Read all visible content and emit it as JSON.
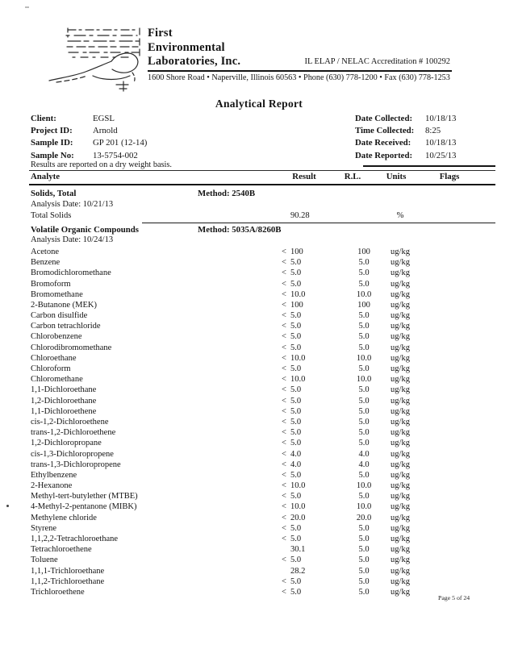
{
  "letterhead": {
    "company_lines": [
      "First",
      "Environmental",
      "Laboratories, Inc."
    ],
    "accreditation": "IL ELAP / NELAC Accreditation # 100292",
    "address": "1600 Shore Road • Naperville, Illinois 60563 • Phone (630) 778-1200 • Fax (630) 778-1253"
  },
  "title": "Analytical Report",
  "info": {
    "left": [
      {
        "label": "Client:",
        "value": "EGSL"
      },
      {
        "label": "Project ID:",
        "value": "Arnold"
      },
      {
        "label": "Sample ID:",
        "value": "GP 201  (12-14)"
      },
      {
        "label": "Sample No:",
        "value": "13-5754-002"
      }
    ],
    "right": [
      {
        "label": "Date Collected:",
        "value": "10/18/13"
      },
      {
        "label": "Time Collected:",
        "value": "8:25"
      },
      {
        "label": "Date Received:",
        "value": "10/18/13"
      },
      {
        "label": "Date Reported:",
        "value": "10/25/13"
      }
    ],
    "note": "Results are reported on a dry weight basis."
  },
  "table": {
    "columns": [
      "Analyte",
      "Result",
      "R.L.",
      "Units",
      "Flags"
    ],
    "sections": [
      {
        "name": "Solids, Total",
        "method": "Method:  2540B",
        "analysis_date": "Analysis Date:   10/21/13",
        "divider_after": true,
        "rows": [
          {
            "analyte": "Total Solids",
            "qualifier": "",
            "result": "90.28",
            "rl": "",
            "units": "%",
            "flags": ""
          }
        ]
      },
      {
        "name": "Volatile Organic Compounds",
        "method": "Method:  5035A/8260B",
        "analysis_date": "Analysis Date:   10/24/13",
        "divider_after": false,
        "rows": [
          {
            "analyte": "Acetone",
            "qualifier": "<",
            "result": "100",
            "rl": "100",
            "units": "ug/kg",
            "flags": ""
          },
          {
            "analyte": "Benzene",
            "qualifier": "<",
            "result": "5.0",
            "rl": "5.0",
            "units": "ug/kg",
            "flags": ""
          },
          {
            "analyte": "Bromodichloromethane",
            "qualifier": "<",
            "result": "5.0",
            "rl": "5.0",
            "units": "ug/kg",
            "flags": ""
          },
          {
            "analyte": "Bromoform",
            "qualifier": "<",
            "result": "5.0",
            "rl": "5.0",
            "units": "ug/kg",
            "flags": ""
          },
          {
            "analyte": "Bromomethane",
            "qualifier": "<",
            "result": "10.0",
            "rl": "10.0",
            "units": "ug/kg",
            "flags": ""
          },
          {
            "analyte": "2-Butanone (MEK)",
            "qualifier": "<",
            "result": "100",
            "rl": "100",
            "units": "ug/kg",
            "flags": ""
          },
          {
            "analyte": "Carbon disulfide",
            "qualifier": "<",
            "result": "5.0",
            "rl": "5.0",
            "units": "ug/kg",
            "flags": ""
          },
          {
            "analyte": "Carbon tetrachloride",
            "qualifier": "<",
            "result": "5.0",
            "rl": "5.0",
            "units": "ug/kg",
            "flags": ""
          },
          {
            "analyte": "Chlorobenzene",
            "qualifier": "<",
            "result": "5.0",
            "rl": "5.0",
            "units": "ug/kg",
            "flags": ""
          },
          {
            "analyte": "Chlorodibromomethane",
            "qualifier": "<",
            "result": "5.0",
            "rl": "5.0",
            "units": "ug/kg",
            "flags": ""
          },
          {
            "analyte": "Chloroethane",
            "qualifier": "<",
            "result": "10.0",
            "rl": "10.0",
            "units": "ug/kg",
            "flags": ""
          },
          {
            "analyte": "Chloroform",
            "qualifier": "<",
            "result": "5.0",
            "rl": "5.0",
            "units": "ug/kg",
            "flags": ""
          },
          {
            "analyte": "Chloromethane",
            "qualifier": "<",
            "result": "10.0",
            "rl": "10.0",
            "units": "ug/kg",
            "flags": ""
          },
          {
            "analyte": "1,1-Dichloroethane",
            "qualifier": "<",
            "result": "5.0",
            "rl": "5.0",
            "units": "ug/kg",
            "flags": ""
          },
          {
            "analyte": "1,2-Dichloroethane",
            "qualifier": "<",
            "result": "5.0",
            "rl": "5.0",
            "units": "ug/kg",
            "flags": ""
          },
          {
            "analyte": "1,1-Dichloroethene",
            "qualifier": "<",
            "result": "5.0",
            "rl": "5.0",
            "units": "ug/kg",
            "flags": ""
          },
          {
            "analyte": "cis-1,2-Dichloroethene",
            "qualifier": "<",
            "result": "5.0",
            "rl": "5.0",
            "units": "ug/kg",
            "flags": ""
          },
          {
            "analyte": "trans-1,2-Dichloroethene",
            "qualifier": "<",
            "result": "5.0",
            "rl": "5.0",
            "units": "ug/kg",
            "flags": ""
          },
          {
            "analyte": "1,2-Dichloropropane",
            "qualifier": "<",
            "result": "5.0",
            "rl": "5.0",
            "units": "ug/kg",
            "flags": ""
          },
          {
            "analyte": "cis-1,3-Dichloropropene",
            "qualifier": "<",
            "result": "4.0",
            "rl": "4.0",
            "units": "ug/kg",
            "flags": ""
          },
          {
            "analyte": "trans-1,3-Dichloropropene",
            "qualifier": "<",
            "result": "4.0",
            "rl": "4.0",
            "units": "ug/kg",
            "flags": ""
          },
          {
            "analyte": "Ethylbenzene",
            "qualifier": "<",
            "result": "5.0",
            "rl": "5.0",
            "units": "ug/kg",
            "flags": ""
          },
          {
            "analyte": "2-Hexanone",
            "qualifier": "<",
            "result": "10.0",
            "rl": "10.0",
            "units": "ug/kg",
            "flags": ""
          },
          {
            "analyte": "Methyl-tert-butylether (MTBE)",
            "qualifier": "<",
            "result": "5.0",
            "rl": "5.0",
            "units": "ug/kg",
            "flags": ""
          },
          {
            "analyte": "4-Methyl-2-pentanone  (MIBK)",
            "qualifier": "<",
            "result": "10.0",
            "rl": "10.0",
            "units": "ug/kg",
            "flags": ""
          },
          {
            "analyte": "Methylene chloride",
            "qualifier": "<",
            "result": "20.0",
            "rl": "20.0",
            "units": "ug/kg",
            "flags": ""
          },
          {
            "analyte": "Styrene",
            "qualifier": "<",
            "result": "5.0",
            "rl": "5.0",
            "units": "ug/kg",
            "flags": ""
          },
          {
            "analyte": "1,1,2,2-Tetrachloroethane",
            "qualifier": "<",
            "result": "5.0",
            "rl": "5.0",
            "units": "ug/kg",
            "flags": ""
          },
          {
            "analyte": "Tetrachloroethene",
            "qualifier": "",
            "result": "30.1",
            "rl": "5.0",
            "units": "ug/kg",
            "flags": ""
          },
          {
            "analyte": "Toluene",
            "qualifier": "<",
            "result": "5.0",
            "rl": "5.0",
            "units": "ug/kg",
            "flags": ""
          },
          {
            "analyte": "1,1,1-Trichloroethane",
            "qualifier": "",
            "result": "28.2",
            "rl": "5.0",
            "units": "ug/kg",
            "flags": ""
          },
          {
            "analyte": "1,1,2-Trichloroethane",
            "qualifier": "<",
            "result": "5.0",
            "rl": "5.0",
            "units": "ug/kg",
            "flags": ""
          },
          {
            "analyte": "Trichloroethene",
            "qualifier": "<",
            "result": "5.0",
            "rl": "5.0",
            "units": "ug/kg",
            "flags": ""
          }
        ]
      }
    ]
  },
  "footer": {
    "page": "Page 5 of 24"
  }
}
